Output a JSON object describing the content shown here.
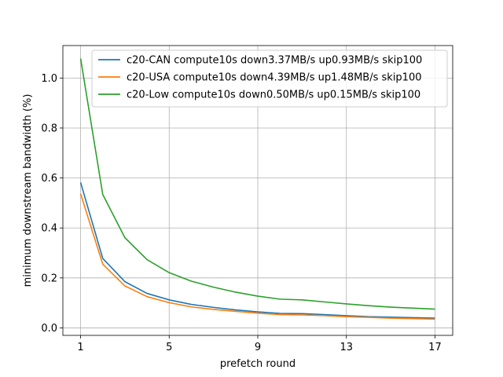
{
  "chart_data": {
    "type": "line",
    "title": "",
    "xlabel": "prefetch round",
    "ylabel": "minimum downstream bandwidth (%)",
    "xlim": [
      0.2,
      17.8
    ],
    "ylim": [
      -0.03,
      1.13
    ],
    "xticks": [
      1,
      5,
      9,
      13,
      17
    ],
    "yticks": [
      0.0,
      0.2,
      0.4,
      0.6,
      0.8,
      1.0
    ],
    "xtick_labels": [
      "1",
      "5",
      "9",
      "13",
      "17"
    ],
    "ytick_labels": [
      "0.0",
      "0.2",
      "0.4",
      "0.6",
      "0.8",
      "1.0"
    ],
    "grid": true,
    "legend_position": "top-right",
    "x": [
      1,
      2,
      3,
      4,
      5,
      6,
      7,
      8,
      9,
      10,
      11,
      12,
      13,
      14,
      15,
      16,
      17
    ],
    "series": [
      {
        "name": "c20-CAN compute10s down3.37MB/s up0.93MB/s skip100",
        "color": "#1f77b4",
        "values": [
          0.582,
          0.278,
          0.185,
          0.138,
          0.112,
          0.094,
          0.082,
          0.072,
          0.064,
          0.058,
          0.057,
          0.053,
          0.049,
          0.045,
          0.043,
          0.041,
          0.039
        ]
      },
      {
        "name": "c20-USA compute10s down4.39MB/s up1.48MB/s skip100",
        "color": "#ff7f0e",
        "values": [
          0.537,
          0.255,
          0.168,
          0.125,
          0.101,
          0.084,
          0.074,
          0.066,
          0.059,
          0.053,
          0.052,
          0.049,
          0.045,
          0.042,
          0.039,
          0.037,
          0.035
        ]
      },
      {
        "name": "c20-Low compute10s down0.50MB/s up0.15MB/s skip100",
        "color": "#2ca02c",
        "values": [
          1.078,
          0.534,
          0.361,
          0.273,
          0.221,
          0.187,
          0.163,
          0.143,
          0.127,
          0.115,
          0.112,
          0.104,
          0.096,
          0.089,
          0.083,
          0.079,
          0.075
        ]
      }
    ]
  }
}
